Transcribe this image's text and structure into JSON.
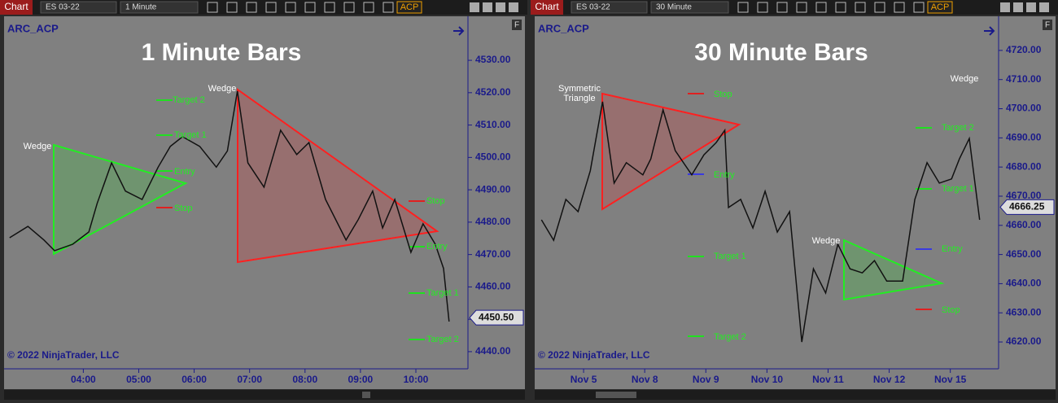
{
  "panels": [
    {
      "toolbar": {
        "tab": "Chart",
        "instrument": "ES 03-22",
        "interval": "1 Minute",
        "indicator": "ACP"
      },
      "series_name": "ARC_ACP",
      "title": "1 Minute Bars",
      "copyright": "© 2022 NinjaTrader, LLC",
      "xlim": [
        2.57,
        10.94
      ],
      "xticks": [
        {
          "value": 4,
          "label": "04:00"
        },
        {
          "value": 5,
          "label": "05:00"
        },
        {
          "value": 6,
          "label": "06:00"
        },
        {
          "value": 7,
          "label": "07:00"
        },
        {
          "value": 8,
          "label": "08:00"
        },
        {
          "value": 9,
          "label": "09:00"
        },
        {
          "value": 10,
          "label": "10:00"
        }
      ],
      "ylim": [
        4434.7,
        4543.6
      ],
      "yticks": [
        {
          "value": 4440,
          "label": "4440.00"
        },
        {
          "value": 4450,
          "label": "4450.00"
        },
        {
          "value": 4460,
          "label": "4460.00"
        },
        {
          "value": 4470,
          "label": "4470.00"
        },
        {
          "value": 4480,
          "label": "4480.00"
        },
        {
          "value": 4490,
          "label": "4490.00"
        },
        {
          "value": 4500,
          "label": "4500.00"
        },
        {
          "value": 4510,
          "label": "4510.00"
        },
        {
          "value": 4520,
          "label": "4520.00"
        },
        {
          "value": 4530,
          "label": "4530.00"
        }
      ],
      "last_price": {
        "value": 4450.5,
        "label": "4450.50"
      },
      "price": {
        "x": [
          2.67,
          3.0,
          3.29,
          3.48,
          3.81,
          4.1,
          4.25,
          4.51,
          4.76,
          5.06,
          5.35,
          5.57,
          5.79,
          6.1,
          6.4,
          6.6,
          6.78,
          6.97,
          7.26,
          7.56,
          7.85,
          8.07,
          8.37,
          8.74,
          8.96,
          9.22,
          9.4,
          9.62,
          9.91,
          10.13,
          10.35,
          10.5,
          10.6
        ],
        "values": [
          4475.2,
          4478.7,
          4474.5,
          4471.2,
          4473.2,
          4477,
          4485.8,
          4498.3,
          4489.6,
          4487,
          4497,
          4503.4,
          4506.4,
          4503.4,
          4497,
          4502,
          4520.5,
          4498.3,
          4490.8,
          4508.4,
          4500.9,
          4504.6,
          4487,
          4474.5,
          4480.8,
          4489.6,
          4478.2,
          4487,
          4470.7,
          4479.5,
          4473.2,
          4465.7,
          4449.3
        ]
      },
      "annotations": [
        "Wedge",
        "Wedge",
        "Target 2",
        "Target 1",
        "Entry",
        "Stop",
        "Stop",
        "Entry",
        "Target 1",
        "Target 2"
      ]
    },
    {
      "toolbar": {
        "tab": "Chart",
        "instrument": "ES 03-22",
        "interval": "30 Minute",
        "indicator": "ACP"
      },
      "series_name": "ARC_ACP",
      "title": "30 Minute Bars",
      "copyright": "© 2022 NinjaTrader, LLC",
      "xlim": [
        -0.8,
        6.79
      ],
      "xticks": [
        {
          "value": 0,
          "label": "Nov 5"
        },
        {
          "value": 1,
          "label": "Nov 8"
        },
        {
          "value": 2,
          "label": "Nov 9"
        },
        {
          "value": 3,
          "label": "Nov 10"
        },
        {
          "value": 4,
          "label": "Nov 11"
        },
        {
          "value": 5,
          "label": "Nov 12"
        },
        {
          "value": 6,
          "label": "Nov 15"
        }
      ],
      "ylim": [
        4610.8,
        4731.7
      ],
      "yticks": [
        {
          "value": 4620,
          "label": "4620.00"
        },
        {
          "value": 4630,
          "label": "4630.00"
        },
        {
          "value": 4640,
          "label": "4640.00"
        },
        {
          "value": 4650,
          "label": "4650.00"
        },
        {
          "value": 4660,
          "label": "4660.00"
        },
        {
          "value": 4670,
          "label": "4670.00"
        },
        {
          "value": 4680,
          "label": "4680.00"
        },
        {
          "value": 4690,
          "label": "4690.00"
        },
        {
          "value": 4700,
          "label": "4700.00"
        },
        {
          "value": 4710,
          "label": "4710.00"
        },
        {
          "value": 4720,
          "label": "4720.00"
        }
      ],
      "last_price": {
        "value": 4666.25,
        "label": "4666.25"
      },
      "price": {
        "x": [
          -0.69,
          -0.49,
          -0.29,
          -0.09,
          0.11,
          0.31,
          0.5,
          0.7,
          0.97,
          1.1,
          1.3,
          1.5,
          1.77,
          1.97,
          2.17,
          2.31,
          2.37,
          2.57,
          2.77,
          2.97,
          3.17,
          3.37,
          3.57,
          3.76,
          3.96,
          4.16,
          4.36,
          4.56,
          4.76,
          4.96,
          5.22,
          5.42,
          5.62,
          5.82,
          6.02,
          6.15,
          6.31,
          6.48
        ],
        "values": [
          4661.9,
          4654.9,
          4668.9,
          4664.7,
          4678.7,
          4702.4,
          4674.5,
          4681.5,
          4677.3,
          4682.8,
          4699.6,
          4685.6,
          4677.3,
          4684.2,
          4688.4,
          4692.6,
          4666.1,
          4668.9,
          4659.1,
          4671.7,
          4657.7,
          4664.7,
          4620,
          4645.1,
          4636.8,
          4653.5,
          4645.1,
          4643.7,
          4647.9,
          4640.9,
          4640.9,
          4668.9,
          4681.5,
          4674.5,
          4675.9,
          4682.8,
          4689.8,
          4661.9
        ]
      },
      "annotations": [
        "Symmetric",
        "Triangle",
        "Stop",
        "Entry",
        "Target 1",
        "Target 2",
        "Wedge",
        "Target 2",
        "Target 1",
        "Wedge",
        "Entry",
        "Stop"
      ]
    }
  ]
}
